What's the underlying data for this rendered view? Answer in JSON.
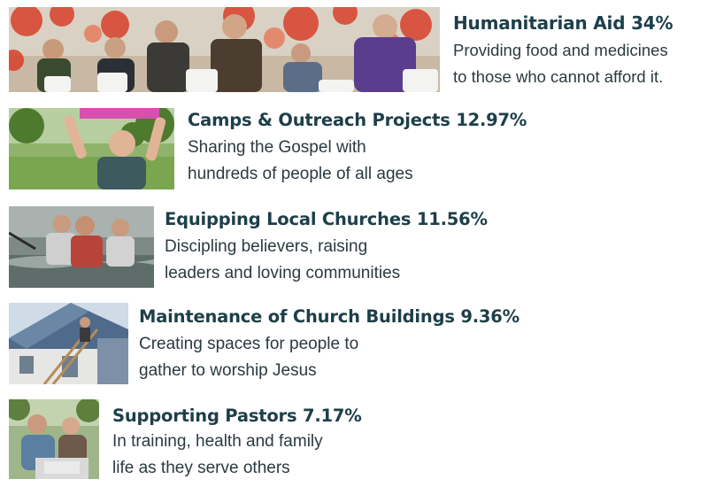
{
  "items": [
    {
      "title": "Humanitarian Aid  34%",
      "lines": [
        "Providing food and medicines",
        "to those who cannot afford it."
      ],
      "image": "elderly-people-receiving-food-bags-photo"
    },
    {
      "title": "Camps & Outreach Projects 12.97%",
      "lines": [
        "Sharing the Gospel with",
        "hundreds of people of all ages"
      ],
      "image": "boy-holding-box-outdoors-photo"
    },
    {
      "title": "Equipping Local Churches 11.56%",
      "lines": [
        "Discipling believers, raising",
        "leaders and loving communities"
      ],
      "image": "baptism-in-water-photo"
    },
    {
      "title": "Maintenance of Church Buildings 9.36%",
      "lines": [
        "Creating spaces for people to",
        "gather to worship Jesus"
      ],
      "image": "church-roof-repair-photo"
    },
    {
      "title": "Supporting Pastors 7.17%",
      "lines": [
        "In training, health and family",
        "life as they serve others"
      ],
      "image": "couple-with-laptop-photo"
    }
  ]
}
